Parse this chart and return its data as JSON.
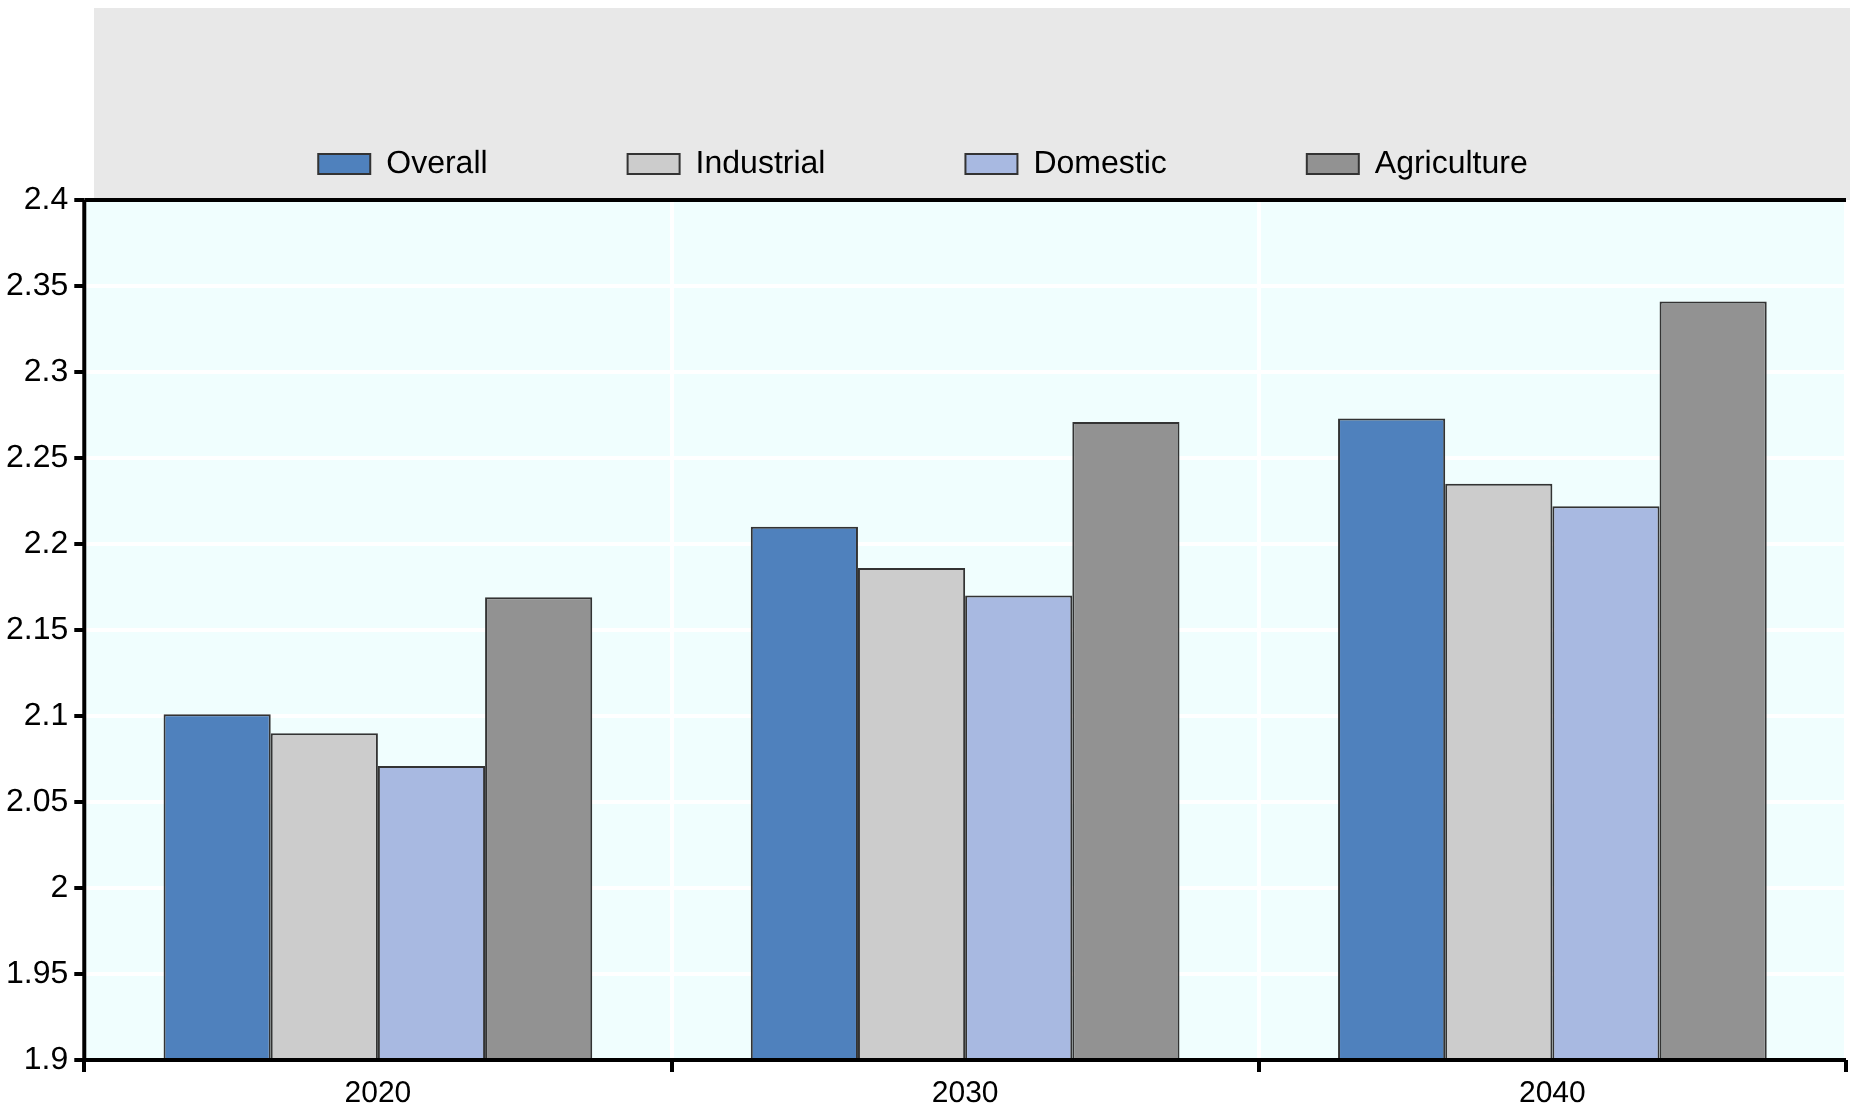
{
  "chart_data": {
    "type": "bar",
    "categories": [
      "2020",
      "2030",
      "2040"
    ],
    "series": [
      {
        "name": "Overall",
        "color": "#4f81bd",
        "values": [
          2.101,
          2.21,
          2.273
        ]
      },
      {
        "name": "Industrial",
        "color": "#cccccc",
        "values": [
          2.09,
          2.186,
          2.235
        ]
      },
      {
        "name": "Domestic",
        "color": "#a8b9e1",
        "values": [
          2.071,
          2.17,
          2.222
        ]
      },
      {
        "name": "Agriculture",
        "color": "#929292",
        "values": [
          2.169,
          2.271,
          2.341
        ]
      }
    ],
    "ylim": [
      1.9,
      2.4
    ],
    "yticks": [
      1.9,
      1.95,
      2,
      2.05,
      2.1,
      2.15,
      2.2,
      2.25,
      2.3,
      2.35,
      2.4
    ],
    "grid": true,
    "legend": "top"
  }
}
